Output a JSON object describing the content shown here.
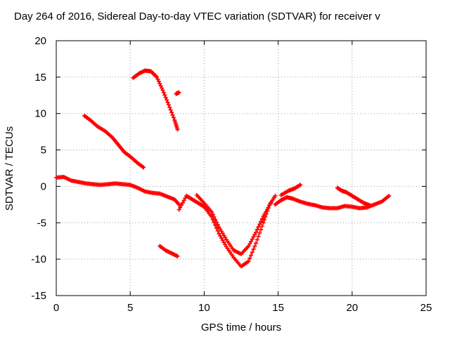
{
  "chart_data": {
    "type": "scatter",
    "title": "Day 264 of 2016, Sidereal Day-to-day VTEC variation (SDTVAR) for receiver v",
    "xlabel": "GPS time / hours",
    "ylabel": "SDTVAR / TECUs",
    "xlim": [
      0,
      25
    ],
    "ylim": [
      -15,
      20
    ],
    "x_ticks": [
      "0",
      "5",
      "10",
      "15",
      "20",
      "25"
    ],
    "y_ticks": [
      "-15",
      "-10",
      "-5",
      "0",
      "5",
      "10",
      "15",
      "20"
    ],
    "grid": true,
    "legend": "none",
    "color": "#ff0000",
    "series": [
      {
        "x": [
          0.0,
          0.5,
          1.0,
          1.5,
          2.0,
          2.5,
          3.0,
          3.5,
          4.0,
          4.5,
          5.0,
          5.5,
          6.0,
          6.5,
          7.0,
          7.5,
          8.0,
          8.3
        ],
        "y": [
          1.2,
          1.3,
          0.8,
          0.6,
          0.4,
          0.3,
          0.2,
          0.3,
          0.4,
          0.3,
          0.2,
          -0.2,
          -0.7,
          -0.9,
          -1.0,
          -1.4,
          -1.8,
          -2.5
        ]
      },
      {
        "x": [
          1.9,
          2.3,
          2.8,
          3.3,
          3.8,
          4.2,
          4.6,
          5.0,
          5.5,
          5.9
        ],
        "y": [
          9.7,
          9.1,
          8.2,
          7.6,
          6.7,
          5.7,
          4.7,
          4.1,
          3.2,
          2.6
        ]
      },
      {
        "x": [
          5.2,
          5.6,
          6.0,
          6.4,
          6.8,
          7.2,
          7.6,
          8.0,
          8.2
        ],
        "y": [
          14.9,
          15.5,
          15.9,
          15.8,
          15.0,
          13.2,
          11.2,
          9.1,
          7.8
        ]
      },
      {
        "x": [
          8.1,
          8.3
        ],
        "y": [
          12.7,
          12.9
        ]
      },
      {
        "x": [
          7.0,
          7.4,
          7.8,
          8.2
        ],
        "y": [
          -8.2,
          -8.8,
          -9.2,
          -9.6
        ]
      },
      {
        "x": [
          8.3,
          8.8,
          9.2,
          9.6,
          10.0,
          10.5,
          11.0,
          11.5,
          12.0,
          12.5,
          13.0,
          13.5,
          14.0,
          14.4,
          14.8
        ],
        "y": [
          -3.2,
          -1.3,
          -1.8,
          -2.3,
          -2.8,
          -4.2,
          -6.5,
          -8.3,
          -9.8,
          -11.0,
          -10.3,
          -7.8,
          -5.0,
          -2.6,
          -1.3
        ]
      },
      {
        "x": [
          9.5,
          10.0,
          10.5,
          11.0,
          11.5,
          12.0,
          12.5,
          13.0,
          13.5,
          14.0,
          14.5
        ],
        "y": [
          -1.2,
          -2.3,
          -3.5,
          -5.6,
          -7.3,
          -8.8,
          -9.3,
          -8.2,
          -6.3,
          -4.1,
          -2.3
        ]
      },
      {
        "x": [
          14.8,
          15.2,
          15.6,
          16.0,
          16.5,
          17.0,
          17.5,
          18.0,
          18.5,
          19.0,
          19.5,
          20.0,
          20.5,
          21.0,
          21.5,
          22.0,
          22.5
        ],
        "y": [
          -2.5,
          -1.9,
          -1.5,
          -1.7,
          -2.1,
          -2.4,
          -2.6,
          -2.9,
          -3.0,
          -3.0,
          -2.7,
          -2.8,
          -3.0,
          -2.9,
          -2.5,
          -2.1,
          -1.3
        ]
      },
      {
        "x": [
          15.2,
          15.7,
          16.1,
          16.5
        ],
        "y": [
          -1.2,
          -0.6,
          -0.3,
          0.2
        ]
      },
      {
        "x": [
          19.0,
          19.3,
          19.6,
          20.0,
          20.4,
          20.8,
          21.2
        ],
        "y": [
          -0.2,
          -0.6,
          -0.8,
          -1.3,
          -1.8,
          -2.3,
          -2.6
        ]
      }
    ]
  }
}
